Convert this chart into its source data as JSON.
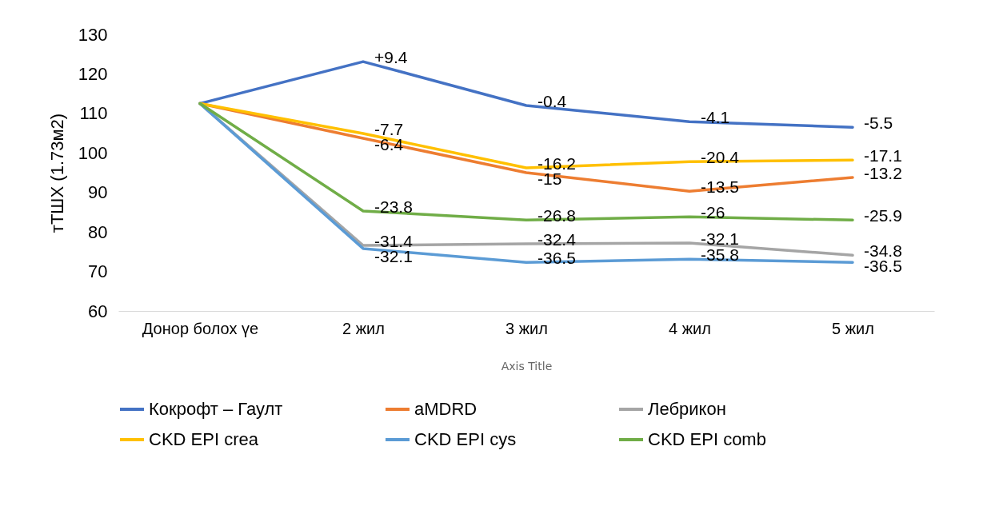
{
  "chart_data": {
    "type": "line",
    "xlabel": "Axis Title",
    "ylabel": "тТШХ (1.73м2)",
    "categories": [
      "Донор болох үе",
      "2 жил",
      "3 жил",
      "4 жил",
      "5 жил"
    ],
    "ylim": [
      60,
      130
    ],
    "yticks": [
      60,
      70,
      80,
      90,
      100,
      110,
      120,
      130
    ],
    "grid": false,
    "legend": "bottom",
    "marker": "none",
    "series": [
      {
        "name": "Кокрофт – Гаулт",
        "color": "#4472c4",
        "values": [
          112.5,
          123.1,
          112.0,
          107.9,
          106.5
        ]
      },
      {
        "name": "aMDRD",
        "color": "#ed7d31",
        "values": [
          112.5,
          103.7,
          95.0,
          90.3,
          93.8
        ]
      },
      {
        "name": "Лебрикон",
        "color": "#a5a5a5",
        "values": [
          112.5,
          76.6,
          77.0,
          77.2,
          74.1
        ]
      },
      {
        "name": "CKD EPI crea",
        "color": "#ffc000",
        "values": [
          112.5,
          104.9,
          96.2,
          97.8,
          98.2
        ]
      },
      {
        "name": "CKD EPI cys",
        "color": "#5b9bd5",
        "values": [
          112.5,
          75.8,
          72.3,
          73.1,
          72.3
        ]
      },
      {
        "name": "CKD EPI comb",
        "color": "#70ad47",
        "values": [
          112.5,
          85.3,
          83.0,
          83.8,
          83.0
        ]
      }
    ],
    "annotations": [
      {
        "text": "+9.4",
        "x": "2 жил",
        "y": 123.1
      },
      {
        "text": "-0.4",
        "x": "3 жил",
        "y": 112.0
      },
      {
        "text": "-4.1",
        "x": "4 жил",
        "y": 107.9
      },
      {
        "text": "-5.5",
        "x": "5 жил",
        "y": 106.5
      },
      {
        "text": "-6.4",
        "x": "2 жил",
        "y": 103.7
      },
      {
        "text": "-15",
        "x": "3 жил",
        "y": 95.0
      },
      {
        "text": "-13.5",
        "x": "4 жил",
        "y": 90.3
      },
      {
        "text": "-13.2",
        "x": "5 жил",
        "y": 93.8
      },
      {
        "text": "-31.4",
        "x": "2 жил",
        "y": 76.6
      },
      {
        "text": "-32.4",
        "x": "3 жил",
        "y": 77.0
      },
      {
        "text": "-32.1",
        "x": "4 жил",
        "y": 77.2
      },
      {
        "text": "-34.8",
        "x": "5 жил",
        "y": 74.1
      },
      {
        "text": "-7.7",
        "x": "2 жил",
        "y": 104.9
      },
      {
        "text": "-16.2",
        "x": "3 жил",
        "y": 96.2
      },
      {
        "text": "-20.4",
        "x": "4 жил",
        "y": 97.8
      },
      {
        "text": "-17.1",
        "x": "5 жил",
        "y": 98.2
      },
      {
        "text": "-32.1",
        "x": "2 жил",
        "y": 75.8
      },
      {
        "text": "-36.5",
        "x": "3 жил",
        "y": 72.3
      },
      {
        "text": "-35.8",
        "x": "4 жил",
        "y": 73.1
      },
      {
        "text": "-36.5",
        "x": "5 жил",
        "y": 72.3
      },
      {
        "text": "-23.8",
        "x": "2 жил",
        "y": 85.3
      },
      {
        "text": "-26.8",
        "x": "3 жил",
        "y": 83.0
      },
      {
        "text": "-26",
        "x": "4 жил",
        "y": 83.8
      },
      {
        "text": "-25.9",
        "x": "5 жил",
        "y": 83.0
      }
    ]
  }
}
